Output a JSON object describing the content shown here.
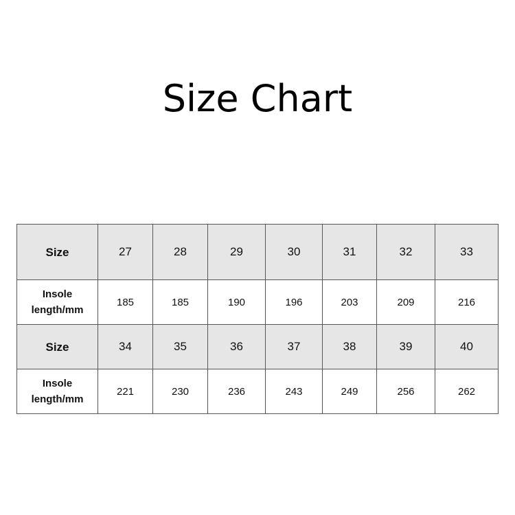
{
  "title": "Size Chart",
  "rows": [
    {
      "type": "size",
      "label": "Size",
      "values": [
        "27",
        "28",
        "29",
        "30",
        "31",
        "32",
        "33"
      ]
    },
    {
      "type": "insole",
      "label": "Insole length/mm",
      "values": [
        "185",
        "185",
        "190",
        "196",
        "203",
        "209",
        "216"
      ]
    },
    {
      "type": "size",
      "label": "Size",
      "values": [
        "34",
        "35",
        "36",
        "37",
        "38",
        "39",
        "40"
      ]
    },
    {
      "type": "insole",
      "label": "Insole length/mm",
      "values": [
        "221",
        "230",
        "236",
        "243",
        "249",
        "256",
        "262"
      ]
    }
  ],
  "colors": {
    "header_row_bg": "#e6e6e6",
    "border": "#555555"
  }
}
